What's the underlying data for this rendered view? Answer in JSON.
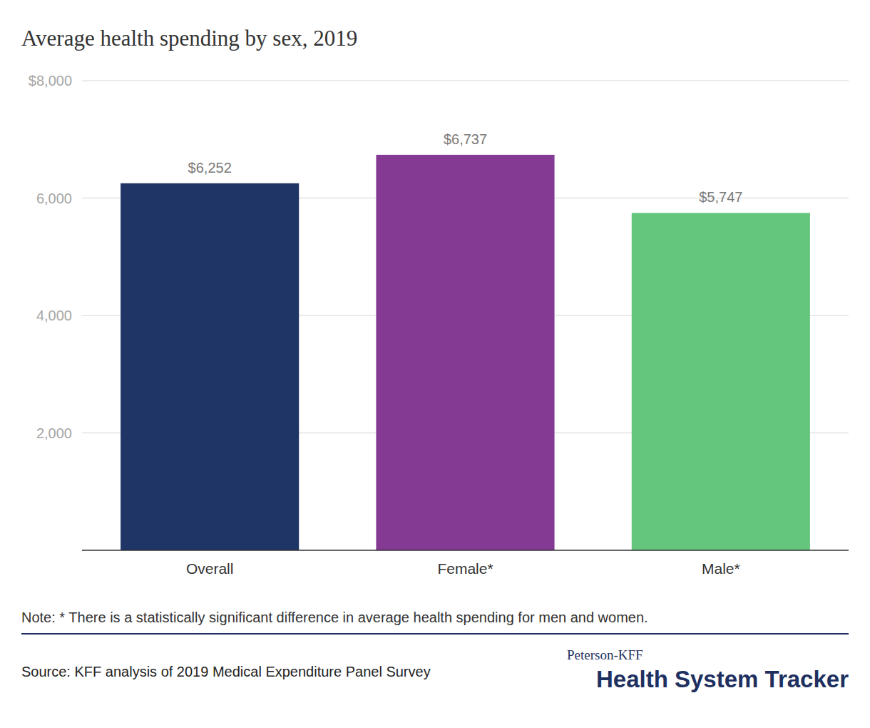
{
  "chart_data": {
    "type": "bar",
    "title": "Average health spending by sex, 2019",
    "categories": [
      "Overall",
      "Female*",
      "Male*"
    ],
    "values": [
      6252,
      6737,
      5747
    ],
    "value_labels": [
      "$6,252",
      "$6,737",
      "$5,747"
    ],
    "colors": [
      "#1f3566",
      "#843993",
      "#64c57c"
    ],
    "ylim": [
      0,
      8000
    ],
    "yticks": [
      {
        "value": 2000,
        "label": "2,000"
      },
      {
        "value": 4000,
        "label": "4,000"
      },
      {
        "value": 6000,
        "label": "6,000"
      },
      {
        "value": 8000,
        "label": "$8,000"
      }
    ],
    "grid": true,
    "data_labels": true,
    "note": "Note: * There is a statistically significant difference in average health spending for men and women.",
    "source": "Source: KFF analysis of 2019 Medical Expenditure Panel Survey",
    "branding": {
      "top": "Peterson-KFF",
      "name": "Health System Tracker"
    }
  }
}
